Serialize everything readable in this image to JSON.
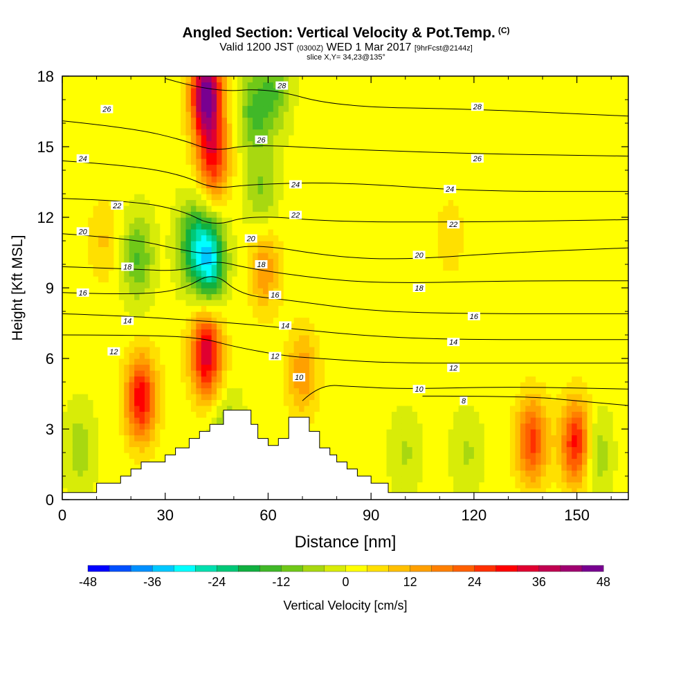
{
  "header": {
    "title": "Angled Section: Vertical Velocity & Pot.Temp.",
    "title_suffix": "(C)",
    "subtitle_valid": "Valid 1200 JST",
    "subtitle_utc": "(0300Z)",
    "subtitle_date": "WED 1 Mar 2017",
    "subtitle_fcst": "[9hrFcst@2144z]",
    "slice_info": "slice X,Y= 34,23@135°"
  },
  "chart_data": {
    "type": "heatmap",
    "xlabel": "Distance [nm]",
    "ylabel": "Height [Kft MSL]",
    "xlim": [
      0,
      165
    ],
    "ylim": [
      0,
      18
    ],
    "x_ticks": [
      0,
      30,
      60,
      90,
      120,
      150
    ],
    "y_ticks": [
      0,
      3,
      6,
      9,
      12,
      15,
      18
    ],
    "colorbar": {
      "label": "Vertical Velocity [cm/s]",
      "ticks": [
        -48,
        -36,
        -24,
        -12,
        0,
        12,
        24,
        36,
        48
      ],
      "levels": [
        -48,
        -44,
        -40,
        -36,
        -32,
        -28,
        -24,
        -20,
        -16,
        -12,
        -8,
        -4,
        0,
        4,
        8,
        12,
        16,
        20,
        24,
        28,
        32,
        36,
        40,
        44,
        48
      ],
      "colors": [
        "#0000ff",
        "#0050ff",
        "#0090ff",
        "#00c8ff",
        "#00ffff",
        "#00e0b0",
        "#00c878",
        "#10b040",
        "#40b828",
        "#70c818",
        "#a8d810",
        "#d8ec08",
        "#ffff00",
        "#ffe000",
        "#ffc000",
        "#ffa000",
        "#ff8000",
        "#ff6000",
        "#ff3000",
        "#ff0000",
        "#e00030",
        "#c00050",
        "#a00070",
        "#780090"
      ]
    },
    "terrain": [
      [
        0,
        0.3
      ],
      [
        10,
        0.3
      ],
      [
        10,
        0.7
      ],
      [
        17,
        0.7
      ],
      [
        17,
        1.0
      ],
      [
        20,
        1.0
      ],
      [
        20,
        1.3
      ],
      [
        23,
        1.3
      ],
      [
        23,
        1.6
      ],
      [
        30,
        1.6
      ],
      [
        30,
        1.9
      ],
      [
        33,
        1.9
      ],
      [
        33,
        2.2
      ],
      [
        37,
        2.2
      ],
      [
        37,
        2.6
      ],
      [
        40,
        2.6
      ],
      [
        40,
        2.9
      ],
      [
        43,
        2.9
      ],
      [
        43,
        3.2
      ],
      [
        47,
        3.2
      ],
      [
        47,
        3.8
      ],
      [
        55,
        3.8
      ],
      [
        55,
        3.2
      ],
      [
        57,
        3.2
      ],
      [
        57,
        2.6
      ],
      [
        60,
        2.6
      ],
      [
        60,
        2.3
      ],
      [
        63,
        2.3
      ],
      [
        63,
        2.6
      ],
      [
        66,
        2.6
      ],
      [
        66,
        3.5
      ],
      [
        72,
        3.5
      ],
      [
        72,
        2.9
      ],
      [
        75,
        2.9
      ],
      [
        75,
        2.2
      ],
      [
        78,
        2.2
      ],
      [
        78,
        1.9
      ],
      [
        80,
        1.9
      ],
      [
        80,
        1.6
      ],
      [
        83,
        1.6
      ],
      [
        83,
        1.3
      ],
      [
        86,
        1.3
      ],
      [
        86,
        1.0
      ],
      [
        90,
        1.0
      ],
      [
        90,
        0.7
      ],
      [
        95,
        0.7
      ],
      [
        95,
        0.3
      ],
      [
        165,
        0.3
      ]
    ],
    "w_features": [
      {
        "x": 23,
        "y": 4.3,
        "peak": 30
      },
      {
        "x": 42,
        "y": 6.2,
        "peak": 34
      },
      {
        "x": 42,
        "y": 17.2,
        "peak": 46
      },
      {
        "x": 44,
        "y": 14.5,
        "peak": 26
      },
      {
        "x": 43,
        "y": 10.2,
        "peak": -30
      },
      {
        "x": 38,
        "y": 10.9,
        "peak": -18
      },
      {
        "x": 22,
        "y": 10.3,
        "peak": -14
      },
      {
        "x": 56,
        "y": 16.5,
        "peak": -14
      },
      {
        "x": 62,
        "y": 17.4,
        "peak": -12
      },
      {
        "x": 58,
        "y": 13.0,
        "peak": -10
      },
      {
        "x": 59,
        "y": 9.8,
        "peak": 14
      },
      {
        "x": 12,
        "y": 11.0,
        "peak": 7
      },
      {
        "x": 70,
        "y": 5.4,
        "peak": 14
      },
      {
        "x": 137,
        "y": 2.5,
        "peak": 24
      },
      {
        "x": 150,
        "y": 2.4,
        "peak": 30
      },
      {
        "x": 155,
        "y": 2.0,
        "peak": -12
      },
      {
        "x": 100,
        "y": 2.0,
        "peak": -6
      },
      {
        "x": 118,
        "y": 2.0,
        "peak": -6
      },
      {
        "x": 48,
        "y": 2.6,
        "peak": -12
      },
      {
        "x": 113,
        "y": 11.2,
        "peak": 5
      },
      {
        "x": 5,
        "y": 2.2,
        "peak": -8
      }
    ],
    "theta_contours": [
      {
        "value": 8,
        "points": [
          [
            105,
            4.4
          ],
          [
            135,
            4.4
          ],
          [
            150,
            4.2
          ],
          [
            165,
            4.0
          ]
        ]
      },
      {
        "value": 10,
        "points": [
          [
            70,
            4.2
          ],
          [
            75,
            4.9
          ],
          [
            85,
            4.8
          ],
          [
            100,
            4.7
          ],
          [
            130,
            4.8
          ],
          [
            165,
            4.7
          ]
        ]
      },
      {
        "value": 12,
        "points": [
          [
            0,
            7.0
          ],
          [
            20,
            7.0
          ],
          [
            40,
            6.9
          ],
          [
            50,
            6.5
          ],
          [
            65,
            6.1
          ],
          [
            75,
            6.0
          ],
          [
            95,
            5.8
          ],
          [
            130,
            5.8
          ],
          [
            165,
            5.8
          ]
        ]
      },
      {
        "value": 14,
        "points": [
          [
            0,
            7.9
          ],
          [
            20,
            7.8
          ],
          [
            40,
            7.6
          ],
          [
            50,
            7.5
          ],
          [
            65,
            7.3
          ],
          [
            85,
            7.0
          ],
          [
            110,
            6.8
          ],
          [
            165,
            6.8
          ]
        ]
      },
      {
        "value": 16,
        "points": [
          [
            0,
            8.8
          ],
          [
            20,
            8.7
          ],
          [
            35,
            8.9
          ],
          [
            44,
            9.7
          ],
          [
            52,
            8.7
          ],
          [
            65,
            8.5
          ],
          [
            90,
            8.0
          ],
          [
            120,
            7.9
          ],
          [
            165,
            7.9
          ]
        ]
      },
      {
        "value": 18,
        "points": [
          [
            0,
            9.9
          ],
          [
            20,
            9.8
          ],
          [
            35,
            9.7
          ],
          [
            44,
            10.2
          ],
          [
            55,
            9.8
          ],
          [
            80,
            9.3
          ],
          [
            100,
            9.2
          ],
          [
            130,
            9.3
          ],
          [
            165,
            9.3
          ]
        ]
      },
      {
        "value": 20,
        "points": [
          [
            0,
            11.3
          ],
          [
            20,
            11.1
          ],
          [
            35,
            10.6
          ],
          [
            44,
            10.4
          ],
          [
            55,
            10.9
          ],
          [
            80,
            10.3
          ],
          [
            100,
            10.2
          ],
          [
            130,
            10.5
          ],
          [
            165,
            10.7
          ]
        ]
      },
      {
        "value": 22,
        "points": [
          [
            0,
            12.8
          ],
          [
            20,
            12.7
          ],
          [
            35,
            12.3
          ],
          [
            44,
            11.6
          ],
          [
            55,
            12.1
          ],
          [
            80,
            11.8
          ],
          [
            120,
            11.8
          ],
          [
            165,
            11.9
          ]
        ]
      },
      {
        "value": 24,
        "points": [
          [
            0,
            14.4
          ],
          [
            20,
            14.2
          ],
          [
            35,
            13.8
          ],
          [
            44,
            13.2
          ],
          [
            55,
            13.4
          ],
          [
            80,
            13.5
          ],
          [
            120,
            13.1
          ],
          [
            165,
            13.1
          ]
        ]
      },
      {
        "value": 26,
        "points": [
          [
            0,
            16.1
          ],
          [
            20,
            15.8
          ],
          [
            35,
            15.3
          ],
          [
            44,
            14.8
          ],
          [
            55,
            15.1
          ],
          [
            80,
            14.9
          ],
          [
            120,
            14.7
          ],
          [
            165,
            14.6
          ]
        ]
      },
      {
        "value": 28,
        "points": [
          [
            30,
            17.9
          ],
          [
            44,
            17.3
          ],
          [
            60,
            17.5
          ],
          [
            80,
            16.7
          ],
          [
            120,
            16.6
          ],
          [
            165,
            16.3
          ]
        ]
      }
    ],
    "contour_labels": [
      {
        "text": "26",
        "x": 13,
        "y": 16.6
      },
      {
        "text": "24",
        "x": 6,
        "y": 14.5
      },
      {
        "text": "22",
        "x": 16,
        "y": 12.5
      },
      {
        "text": "20",
        "x": 6,
        "y": 11.4
      },
      {
        "text": "18",
        "x": 19,
        "y": 9.9
      },
      {
        "text": "16",
        "x": 6,
        "y": 8.8
      },
      {
        "text": "14",
        "x": 19,
        "y": 7.6
      },
      {
        "text": "12",
        "x": 15,
        "y": 6.3
      },
      {
        "text": "28",
        "x": 64,
        "y": 17.6
      },
      {
        "text": "26",
        "x": 58,
        "y": 15.3
      },
      {
        "text": "24",
        "x": 68,
        "y": 13.4
      },
      {
        "text": "22",
        "x": 68,
        "y": 12.1
      },
      {
        "text": "20",
        "x": 55,
        "y": 11.1
      },
      {
        "text": "18",
        "x": 58,
        "y": 10.0
      },
      {
        "text": "16",
        "x": 62,
        "y": 8.7
      },
      {
        "text": "14",
        "x": 65,
        "y": 7.4
      },
      {
        "text": "12",
        "x": 62,
        "y": 6.1
      },
      {
        "text": "10",
        "x": 69,
        "y": 5.2
      },
      {
        "text": "28",
        "x": 121,
        "y": 16.7
      },
      {
        "text": "26",
        "x": 121,
        "y": 14.5
      },
      {
        "text": "24",
        "x": 113,
        "y": 13.2
      },
      {
        "text": "22",
        "x": 114,
        "y": 11.7
      },
      {
        "text": "20",
        "x": 104,
        "y": 10.4
      },
      {
        "text": "18",
        "x": 104,
        "y": 9.0
      },
      {
        "text": "16",
        "x": 120,
        "y": 7.8
      },
      {
        "text": "14",
        "x": 114,
        "y": 6.7
      },
      {
        "text": "12",
        "x": 114,
        "y": 5.6
      },
      {
        "text": "10",
        "x": 104,
        "y": 4.7
      },
      {
        "text": "8",
        "x": 117,
        "y": 4.2
      }
    ]
  }
}
